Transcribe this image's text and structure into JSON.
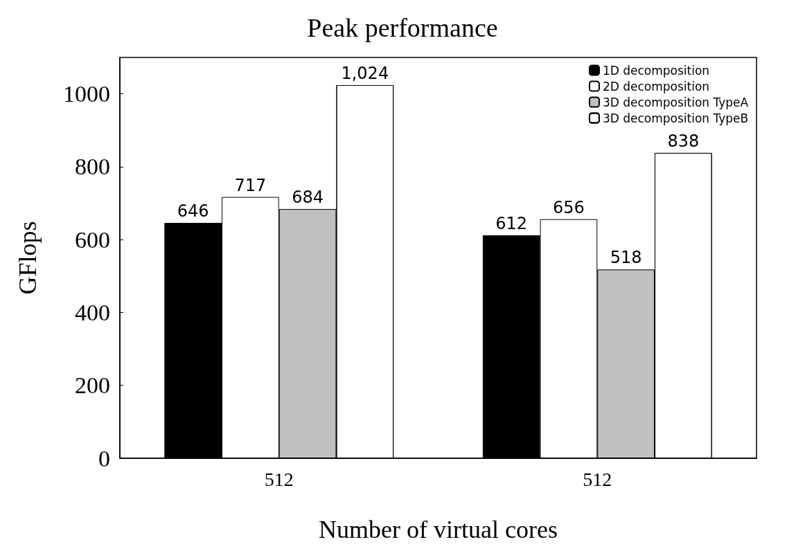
{
  "chart_data": {
    "type": "bar",
    "title": "Peak performance",
    "xlabel": "Number of virtual cores",
    "ylabel": "GFlops",
    "categories": [
      "512",
      "512"
    ],
    "series": [
      {
        "name": "1D decomposition",
        "color": "#000000",
        "values": [
          646,
          612
        ],
        "value_labels": [
          "646",
          "612"
        ]
      },
      {
        "name": "2D decomposition",
        "color": "#ffffff",
        "values": [
          717,
          656
        ],
        "value_labels": [
          "717",
          "656"
        ]
      },
      {
        "name": "3D decomposition TypeA",
        "color": "#c0c0c0",
        "values": [
          684,
          518
        ],
        "value_labels": [
          "684",
          "518"
        ]
      },
      {
        "name": "3D decomposition TypeB",
        "color": "#ffffff",
        "values": [
          1024,
          838
        ],
        "value_labels": [
          "1,024",
          "838"
        ]
      }
    ],
    "ylim": [
      0,
      1100
    ],
    "yticks": [
      0,
      200,
      400,
      600,
      800,
      1000
    ],
    "grid": false,
    "legend": "top right"
  }
}
